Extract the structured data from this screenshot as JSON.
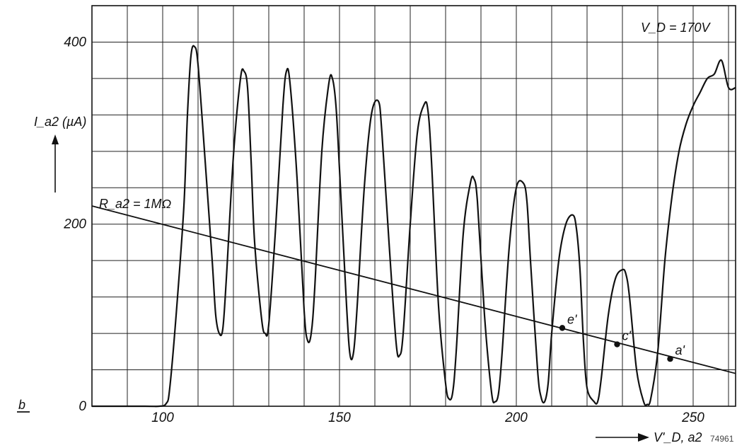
{
  "chart_data": {
    "type": "line",
    "panel_label": "b",
    "ylabel": "I_a2 (µA)",
    "xlabel": "V'_D, a2",
    "annotation": "V_D = 170V",
    "figure_number": "74961",
    "xlim": [
      80,
      262
    ],
    "ylim": [
      0,
      440
    ],
    "x_ticks": [
      100,
      150,
      200,
      250
    ],
    "y_ticks": [
      0,
      200,
      400
    ],
    "grid": true,
    "series": [
      {
        "x": [
          80,
          95,
          99,
          101,
          102,
          104,
          106,
          107,
          108,
          109,
          110,
          112,
          114,
          115,
          116,
          117,
          118,
          120,
          122,
          123,
          124,
          125,
          126,
          128,
          129,
          130,
          132,
          134,
          135,
          136,
          138,
          140,
          141,
          142,
          143,
          145,
          147,
          148,
          149,
          150,
          152,
          153,
          154,
          155,
          157,
          159,
          161,
          162,
          164,
          166,
          167,
          168,
          170,
          172,
          174,
          175,
          176,
          178,
          180,
          181,
          182,
          183,
          185,
          187,
          188,
          189,
          191,
          193,
          194,
          195,
          196,
          198,
          200,
          202,
          203,
          204,
          206,
          207,
          208,
          209,
          210,
          212,
          214,
          216,
          217,
          218,
          219,
          220,
          222,
          223,
          224,
          226,
          228,
          230,
          231,
          232,
          234,
          236,
          237,
          238,
          240,
          242,
          244,
          246,
          248,
          250,
          252,
          254,
          256,
          258,
          260,
          262
        ],
        "y": [
          0,
          0,
          0,
          3,
          20,
          110,
          220,
          320,
          385,
          395,
          375,
          270,
          160,
          100,
          80,
          85,
          140,
          275,
          360,
          368,
          350,
          270,
          180,
          95,
          80,
          90,
          200,
          330,
          368,
          355,
          250,
          105,
          72,
          80,
          130,
          280,
          355,
          360,
          330,
          260,
          110,
          56,
          60,
          110,
          240,
          320,
          335,
          300,
          180,
          70,
          56,
          80,
          200,
          300,
          332,
          325,
          270,
          110,
          25,
          8,
          15,
          60,
          190,
          245,
          250,
          225,
          100,
          15,
          5,
          15,
          60,
          175,
          240,
          245,
          225,
          160,
          40,
          10,
          5,
          25,
          80,
          160,
          200,
          210,
          195,
          150,
          70,
          20,
          5,
          5,
          30,
          100,
          140,
          150,
          145,
          120,
          40,
          5,
          2,
          8,
          60,
          160,
          230,
          280,
          310,
          330,
          345,
          360,
          365,
          380,
          350,
          350
        ]
      },
      {
        "name": "R_a2 = 1MΩ",
        "x": [
          80,
          262
        ],
        "y": [
          220,
          36
        ]
      }
    ],
    "points": [
      {
        "label": "e'",
        "x": 213,
        "y": 86
      },
      {
        "label": "c'",
        "x": 228.5,
        "y": 68
      },
      {
        "label": "a'",
        "x": 243.5,
        "y": 52
      }
    ]
  }
}
